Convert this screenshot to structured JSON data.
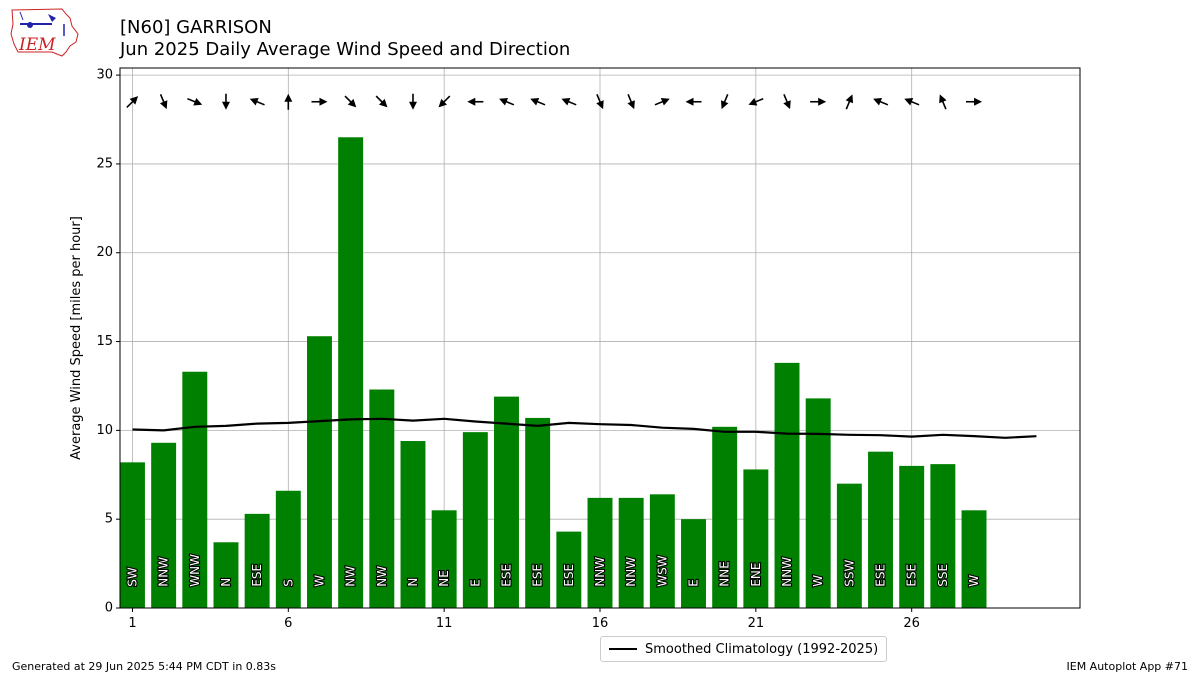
{
  "header": {
    "title": "[N60] GARRISON",
    "subtitle": "Jun 2025 Daily Average Wind Speed and Direction"
  },
  "logo": {
    "text": "IEM"
  },
  "footer": {
    "generated": "Generated at 29 Jun 2025 5:44 PM CDT in 0.83s",
    "app": "IEM Autoplot App #71"
  },
  "legend": {
    "label": "Smoothed Climatology (1992-2025)"
  },
  "colors": {
    "bars": "#008000",
    "climatology": "#000000",
    "grid": "#b0b0b0",
    "logo": "#cc2222"
  },
  "chart_data": {
    "type": "bar",
    "ylabel": "Average Wind Speed [miles per hour]",
    "xlabel": "",
    "xlim": [
      0.6,
      31.4
    ],
    "ylim": [
      0,
      30.4
    ],
    "xticks": [
      1,
      6,
      11,
      16,
      21,
      26
    ],
    "yticks": [
      0,
      5,
      10,
      15,
      20,
      25,
      30
    ],
    "grid": true,
    "legend_position": "bottom-center",
    "days": [
      1,
      2,
      3,
      4,
      5,
      6,
      7,
      8,
      9,
      10,
      11,
      12,
      13,
      14,
      15,
      16,
      17,
      18,
      19,
      20,
      21,
      22,
      23,
      24,
      25,
      26,
      27,
      28
    ],
    "values": [
      8.2,
      9.3,
      13.3,
      3.7,
      5.3,
      6.6,
      15.3,
      26.5,
      12.3,
      9.4,
      5.5,
      9.9,
      11.9,
      10.7,
      4.3,
      6.2,
      6.2,
      6.4,
      5.0,
      10.2,
      7.8,
      13.8,
      11.8,
      7.0,
      8.8,
      8.0,
      8.1,
      5.5
    ],
    "directions": [
      "SW",
      "NNW",
      "WNW",
      "N",
      "ESE",
      "S",
      "W",
      "NW",
      "NW",
      "N",
      "NE",
      "E",
      "ESE",
      "ESE",
      "ESE",
      "NNW",
      "NNW",
      "WSW",
      "E",
      "NNE",
      "ENE",
      "NNW",
      "W",
      "SSW",
      "ESE",
      "ESE",
      "SSE",
      "W"
    ],
    "arrow_y": 28.5,
    "series": [
      {
        "name": "Smoothed Climatology (1992-2025)",
        "x": [
          1,
          2,
          3,
          4,
          5,
          6,
          7,
          8,
          9,
          10,
          11,
          12,
          13,
          14,
          15,
          16,
          17,
          18,
          19,
          20,
          21,
          22,
          23,
          24,
          25,
          26,
          27,
          28,
          29,
          30
        ],
        "values": [
          10.05,
          10.0,
          10.2,
          10.25,
          10.38,
          10.42,
          10.52,
          10.62,
          10.65,
          10.55,
          10.65,
          10.5,
          10.38,
          10.25,
          10.42,
          10.35,
          10.3,
          10.15,
          10.08,
          9.92,
          9.92,
          9.82,
          9.8,
          9.75,
          9.73,
          9.65,
          9.75,
          9.68,
          9.58,
          9.67
        ]
      }
    ]
  }
}
